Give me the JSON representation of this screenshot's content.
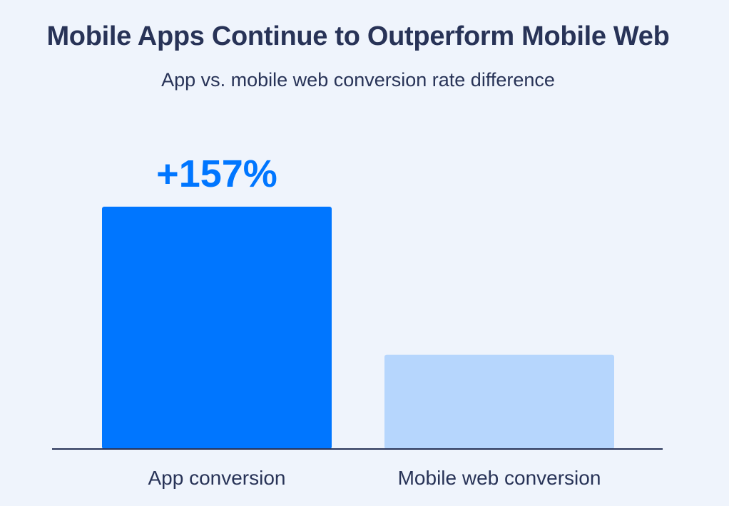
{
  "title": "Mobile Apps Continue to Outperform Mobile Web",
  "subtitle": "App vs. mobile web conversion rate difference",
  "colors": {
    "background": "#eff4fc",
    "text": "#283357",
    "accent": "#0076ff",
    "secondary_bar": "#b6d6fd",
    "axis": "#283357"
  },
  "chart_data": {
    "type": "bar",
    "title": "Mobile Apps Continue to Outperform Mobile Web",
    "subtitle": "App vs. mobile web conversion rate difference",
    "categories": [
      "App conversion",
      "Mobile web conversion"
    ],
    "values": [
      2.57,
      1
    ],
    "value_unit": "relative to mobile web conversion rate",
    "data_labels": [
      "+157%",
      ""
    ],
    "bar_colors": [
      "#0076ff",
      "#b6d6fd"
    ],
    "xlabel": "",
    "ylabel": "",
    "ylim": [
      0,
      2.57
    ],
    "grid": false,
    "legend": "none"
  }
}
